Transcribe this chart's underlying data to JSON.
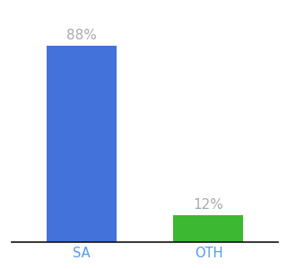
{
  "categories": [
    "SA",
    "OTH"
  ],
  "values": [
    88,
    12
  ],
  "bar_colors": [
    "#4472db",
    "#3cb832"
  ],
  "label_texts": [
    "88%",
    "12%"
  ],
  "background_color": "#ffffff",
  "ylim": [
    0,
    100
  ],
  "bar_width": 0.55,
  "label_fontsize": 11,
  "tick_fontsize": 10.5,
  "label_color": "#aaaaaa",
  "tick_color": "#5599ee",
  "x_positions": [
    0,
    1
  ]
}
